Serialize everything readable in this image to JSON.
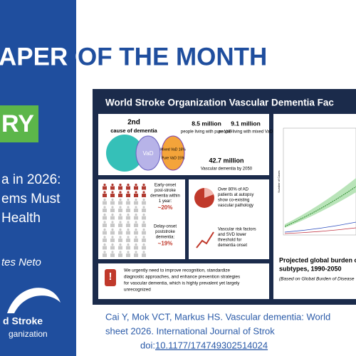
{
  "header": {
    "title": "APER OF THE MONTH"
  },
  "sidebar": {
    "tag": "RY",
    "lines": [
      "a in 2026:",
      "ems Must",
      "Health"
    ],
    "author": "tes Neto",
    "logo": [
      "d Stroke",
      "ganization"
    ]
  },
  "infographic": {
    "title": "World Stroke Organization Vascular Dementia Fac",
    "cause": {
      "rank": "2nd",
      "label": "cause of dementia",
      "vad": "VaD",
      "pure": "Pure VaD 15%",
      "mixed": "Mixed VaD 16%"
    },
    "stats": [
      {
        "value": "8.5 million",
        "label": "people living with pure VaD"
      },
      {
        "value": "9.1 million",
        "label": "people living with mixed VaD"
      },
      {
        "value": "42.7 million",
        "label": "Vascular dementia by 2050"
      }
    ],
    "post_stroke": [
      {
        "label": [
          "Early-onset",
          "post-stroke",
          "dementia within",
          "1 year:"
        ],
        "value": "~20%"
      },
      {
        "label": [
          "Delay-onset",
          "poststroke",
          "dementia:"
        ],
        "value": "~19%"
      }
    ],
    "pathology": {
      "lines": [
        "Over 80% of AD",
        "patients at autopsy",
        "show co-existing",
        "vascular pathology"
      ]
    },
    "risk": {
      "lines": [
        "Vascular risk factors",
        "and SVD lower",
        "threshold for",
        "dementia onset"
      ]
    },
    "warning": {
      "lines": [
        "We urgently need to improve recognition, standardize",
        "diagnostic approaches, and enhance prevention strategies",
        "for vascular dementia, which is highly prevalent yet largely",
        "unrecognized"
      ]
    },
    "chart": {
      "y_label": "Number of Cases",
      "title": [
        "Projected global burden o",
        "subtypes, 1990-2050"
      ],
      "note": "(Based on Global Burden of Disease"
    }
  },
  "citation": {
    "lines": [
      "Cai Y, Mok VCT, Markus HS. Vascular dementia: World",
      "sheet 2026. International Journal of Strok"
    ],
    "doi_prefix": "doi:",
    "doi": "10.1177/174749302514024"
  }
}
